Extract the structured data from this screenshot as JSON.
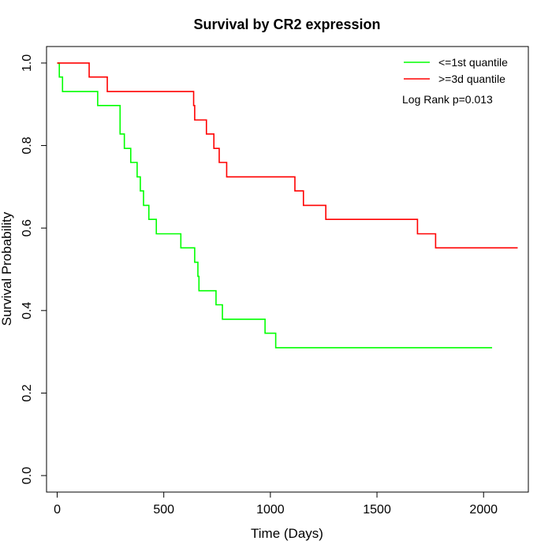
{
  "chart_data": {
    "type": "line",
    "title": "Survival by CR2 expression",
    "xlabel": "Time (Days)",
    "ylabel": "Survival Probability",
    "xlim": [
      -50,
      2210
    ],
    "ylim": [
      -0.04,
      1.04
    ],
    "x_ticks": [
      0,
      500,
      1000,
      1500,
      2000
    ],
    "x_tick_labels": [
      "0",
      "500",
      "1000",
      "1500",
      "2000"
    ],
    "y_ticks": [
      0.0,
      0.2,
      0.4,
      0.6,
      0.8,
      1.0
    ],
    "y_tick_labels": [
      "0.0",
      "0.2",
      "0.4",
      "0.6",
      "0.8",
      "1.0"
    ],
    "grid": false,
    "legend_position": "top-right",
    "annotation": "Log Rank p=0.013",
    "series": [
      {
        "name": "<=1st quantile",
        "color": "#00ff00",
        "step": true,
        "points": [
          [
            0,
            1.0
          ],
          [
            10,
            0.966
          ],
          [
            25,
            0.931
          ],
          [
            190,
            0.897
          ],
          [
            295,
            0.828
          ],
          [
            315,
            0.793
          ],
          [
            345,
            0.759
          ],
          [
            375,
            0.724
          ],
          [
            390,
            0.69
          ],
          [
            405,
            0.655
          ],
          [
            430,
            0.621
          ],
          [
            465,
            0.586
          ],
          [
            580,
            0.552
          ],
          [
            645,
            0.517
          ],
          [
            660,
            0.483
          ],
          [
            665,
            0.448
          ],
          [
            745,
            0.414
          ],
          [
            775,
            0.379
          ],
          [
            975,
            0.345
          ],
          [
            1025,
            0.31
          ],
          [
            2040,
            0.31
          ]
        ]
      },
      {
        "name": ">=3d quantile",
        "color": "#ff0000",
        "step": true,
        "points": [
          [
            0,
            1.0
          ],
          [
            150,
            0.966
          ],
          [
            235,
            0.931
          ],
          [
            640,
            0.897
          ],
          [
            645,
            0.862
          ],
          [
            700,
            0.828
          ],
          [
            735,
            0.793
          ],
          [
            760,
            0.759
          ],
          [
            795,
            0.724
          ],
          [
            1115,
            0.69
          ],
          [
            1155,
            0.655
          ],
          [
            1260,
            0.621
          ],
          [
            1690,
            0.586
          ],
          [
            1775,
            0.552
          ],
          [
            2160,
            0.552
          ]
        ]
      }
    ]
  }
}
